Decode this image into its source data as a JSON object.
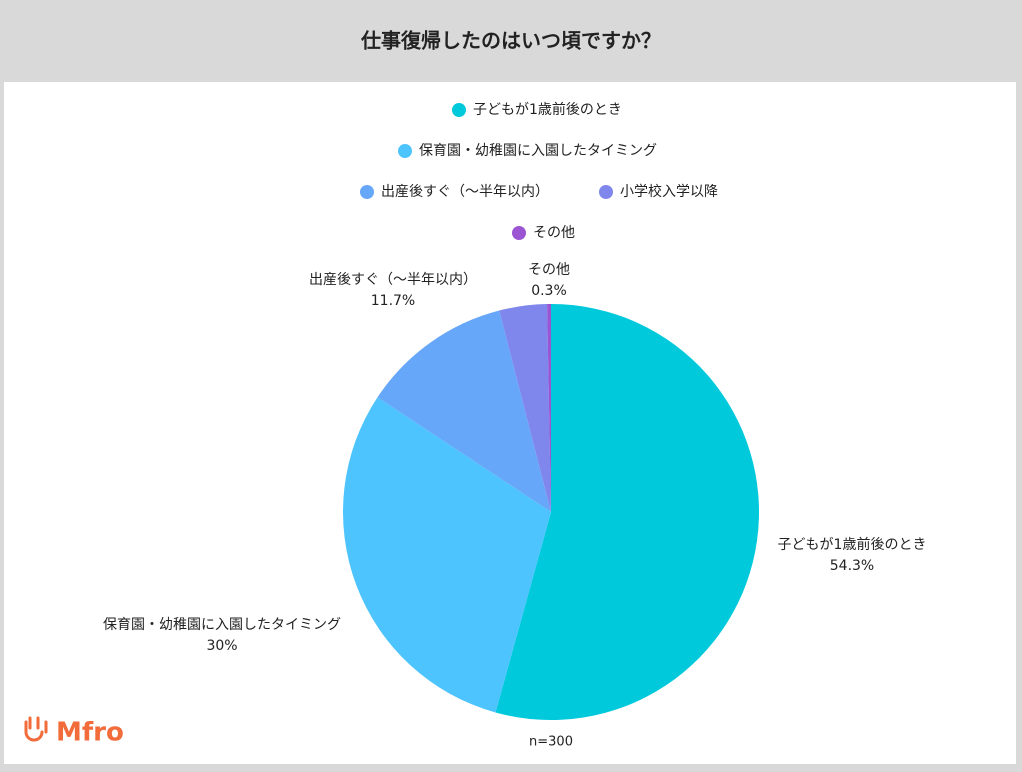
{
  "chart_data": {
    "type": "pie",
    "title": "仕事復帰したのはいつ頃ですか？",
    "categories": [
      "子どもが1歳前後のとき",
      "保育園・幼稚園に入園したタイミング",
      "出産後すぐ（〜半年以内）",
      "小学校入学以降",
      "その他"
    ],
    "values": [
      54.3,
      30,
      11.7,
      3.7,
      0.3
    ],
    "value_labels": [
      "54.3%",
      "30%",
      "11.7%",
      null,
      "0.3%"
    ],
    "colors": [
      "#00c9dc",
      "#4dc4fe",
      "#67a7f9",
      "#7f86ec",
      "#9b55d3"
    ],
    "note": "n=300"
  },
  "logo": "Mfro"
}
